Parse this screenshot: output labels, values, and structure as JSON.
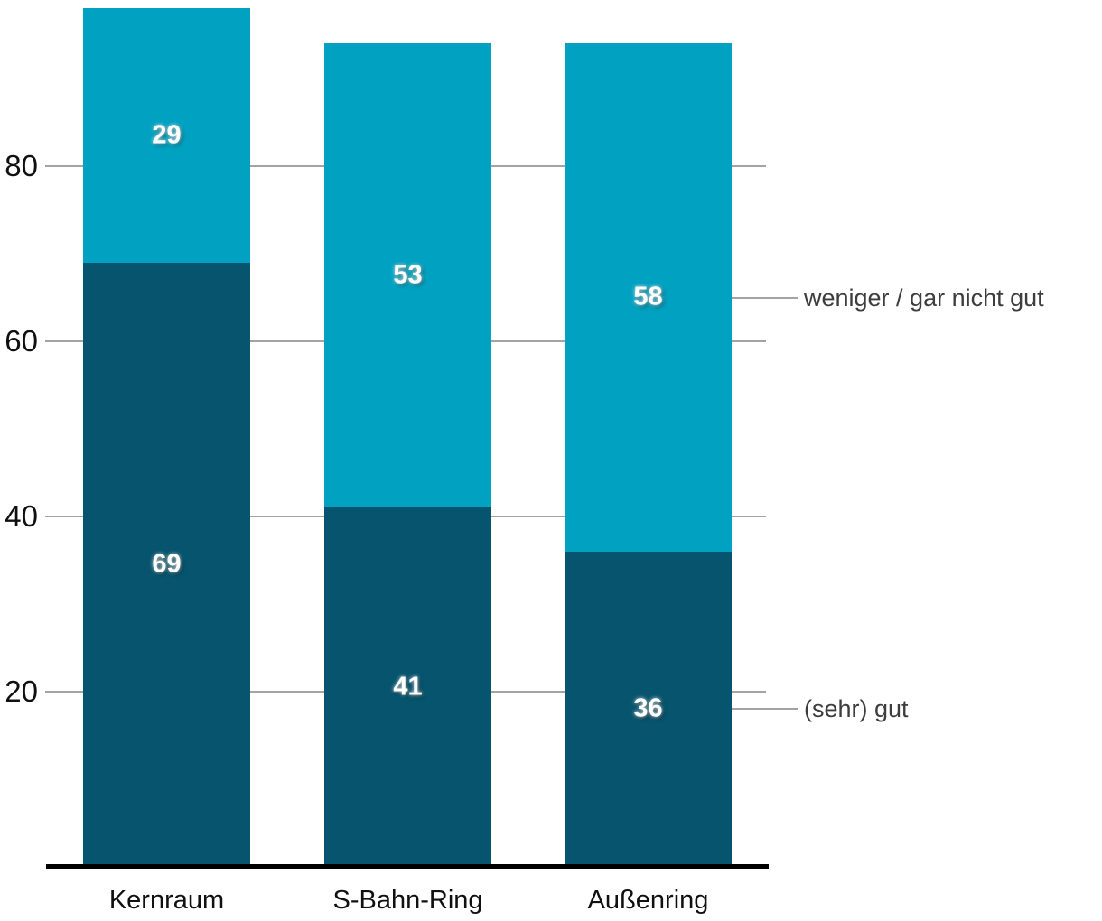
{
  "chart_data": {
    "type": "bar",
    "stacked": true,
    "title": "",
    "xlabel": "",
    "ylabel": "",
    "categories": [
      "Kernraum",
      "S-Bahn-Ring",
      "Außenring"
    ],
    "series": [
      {
        "name": "(sehr) gut",
        "color": "#06546D",
        "values": [
          69,
          41,
          36
        ]
      },
      {
        "name": "weniger / gar nicht gut",
        "color": "#00A1C1",
        "values": [
          29,
          53,
          58
        ]
      }
    ],
    "totals": [
      98,
      94,
      94
    ],
    "yticks": [
      20,
      40,
      60,
      80
    ],
    "ylim": [
      0,
      100
    ],
    "grid": true,
    "legend_position": "right-annotations"
  },
  "colors": {
    "background": "#ffffff",
    "gridline": "#a3a3a3",
    "axis_line": "#000000",
    "tick_label": "#101010",
    "category_label": "#101010",
    "legend_label": "#3d3d3d",
    "value_label": "#ffffff",
    "series_dark": "#06546D",
    "series_light": "#00A1C1"
  }
}
